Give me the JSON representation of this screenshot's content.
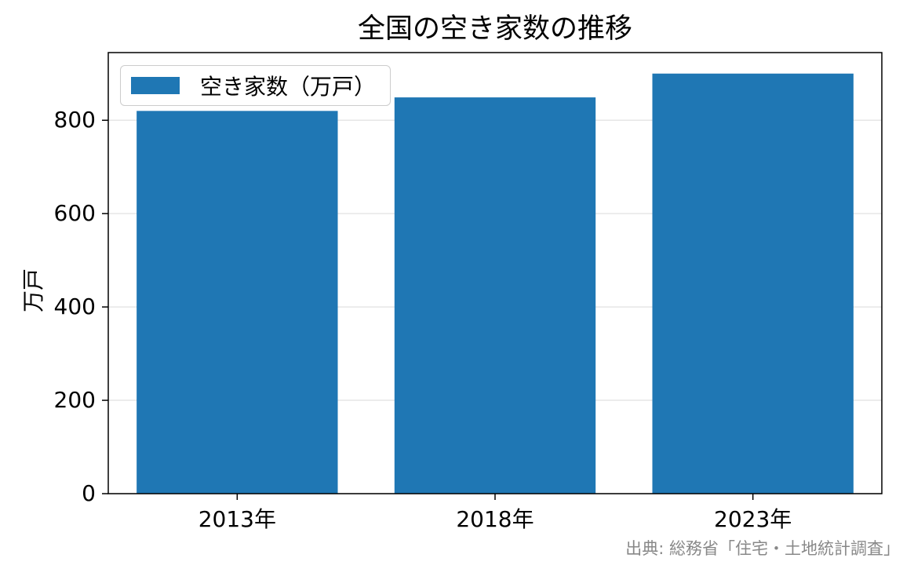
{
  "chart_data": {
    "type": "bar",
    "title": "全国の空き家数の推移",
    "xlabel": "",
    "ylabel": "万戸",
    "categories": [
      "2013年",
      "2018年",
      "2023年"
    ],
    "series": [
      {
        "name": "空き家数（万戸）",
        "values": [
          820,
          849,
          900
        ],
        "color": "#1f77b4"
      }
    ],
    "ylim": [
      0,
      945
    ],
    "yticks": [
      0,
      200,
      400,
      600,
      800
    ],
    "grid": true,
    "legend_position": "upper-left"
  },
  "source_note": "出典: 総務省「住宅・土地統計調査」"
}
